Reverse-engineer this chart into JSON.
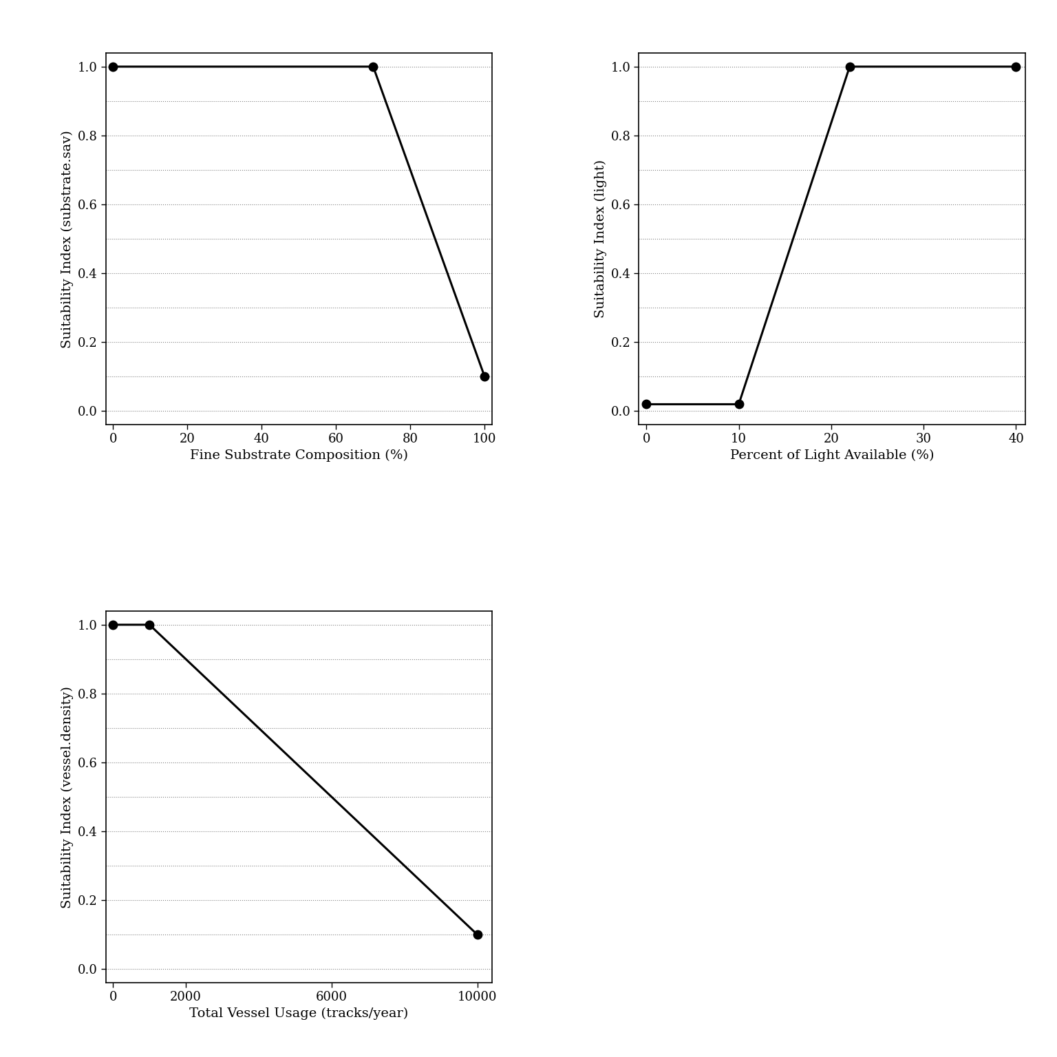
{
  "plots": [
    {
      "x": [
        0,
        70,
        100
      ],
      "y": [
        1.0,
        1.0,
        0.1
      ],
      "xlabel": "Fine Substrate Composition (%)",
      "ylabel": "Suitability Index (substrate.sav)",
      "xlim": [
        -2,
        102
      ],
      "ylim": [
        -0.04,
        1.04
      ],
      "xticks": [
        0,
        20,
        40,
        60,
        80,
        100
      ],
      "yticks": [
        0.0,
        0.2,
        0.4,
        0.6,
        0.8,
        1.0
      ]
    },
    {
      "x": [
        0,
        10,
        22,
        40
      ],
      "y": [
        0.02,
        0.02,
        1.0,
        1.0
      ],
      "xlabel": "Percent of Light Available (%)",
      "ylabel": "Suitability Index (light)",
      "xlim": [
        -0.8,
        41
      ],
      "ylim": [
        -0.04,
        1.04
      ],
      "xticks": [
        0,
        10,
        20,
        30,
        40
      ],
      "yticks": [
        0.0,
        0.2,
        0.4,
        0.6,
        0.8,
        1.0
      ]
    },
    {
      "x": [
        0,
        1000,
        10000
      ],
      "y": [
        1.0,
        1.0,
        0.1
      ],
      "xlabel": "Total Vessel Usage (tracks/year)",
      "ylabel": "Suitability Index (vessel.density)",
      "xlim": [
        -200,
        10400
      ],
      "ylim": [
        -0.04,
        1.04
      ],
      "xticks": [
        0,
        2000,
        6000,
        10000
      ],
      "yticks": [
        0.0,
        0.2,
        0.4,
        0.6,
        0.8,
        1.0
      ]
    }
  ],
  "line_color": "black",
  "marker_color": "black",
  "marker_size": 9,
  "line_width": 2.2,
  "background_color": "white",
  "grid_color": "black",
  "grid_alpha": 0.5
}
